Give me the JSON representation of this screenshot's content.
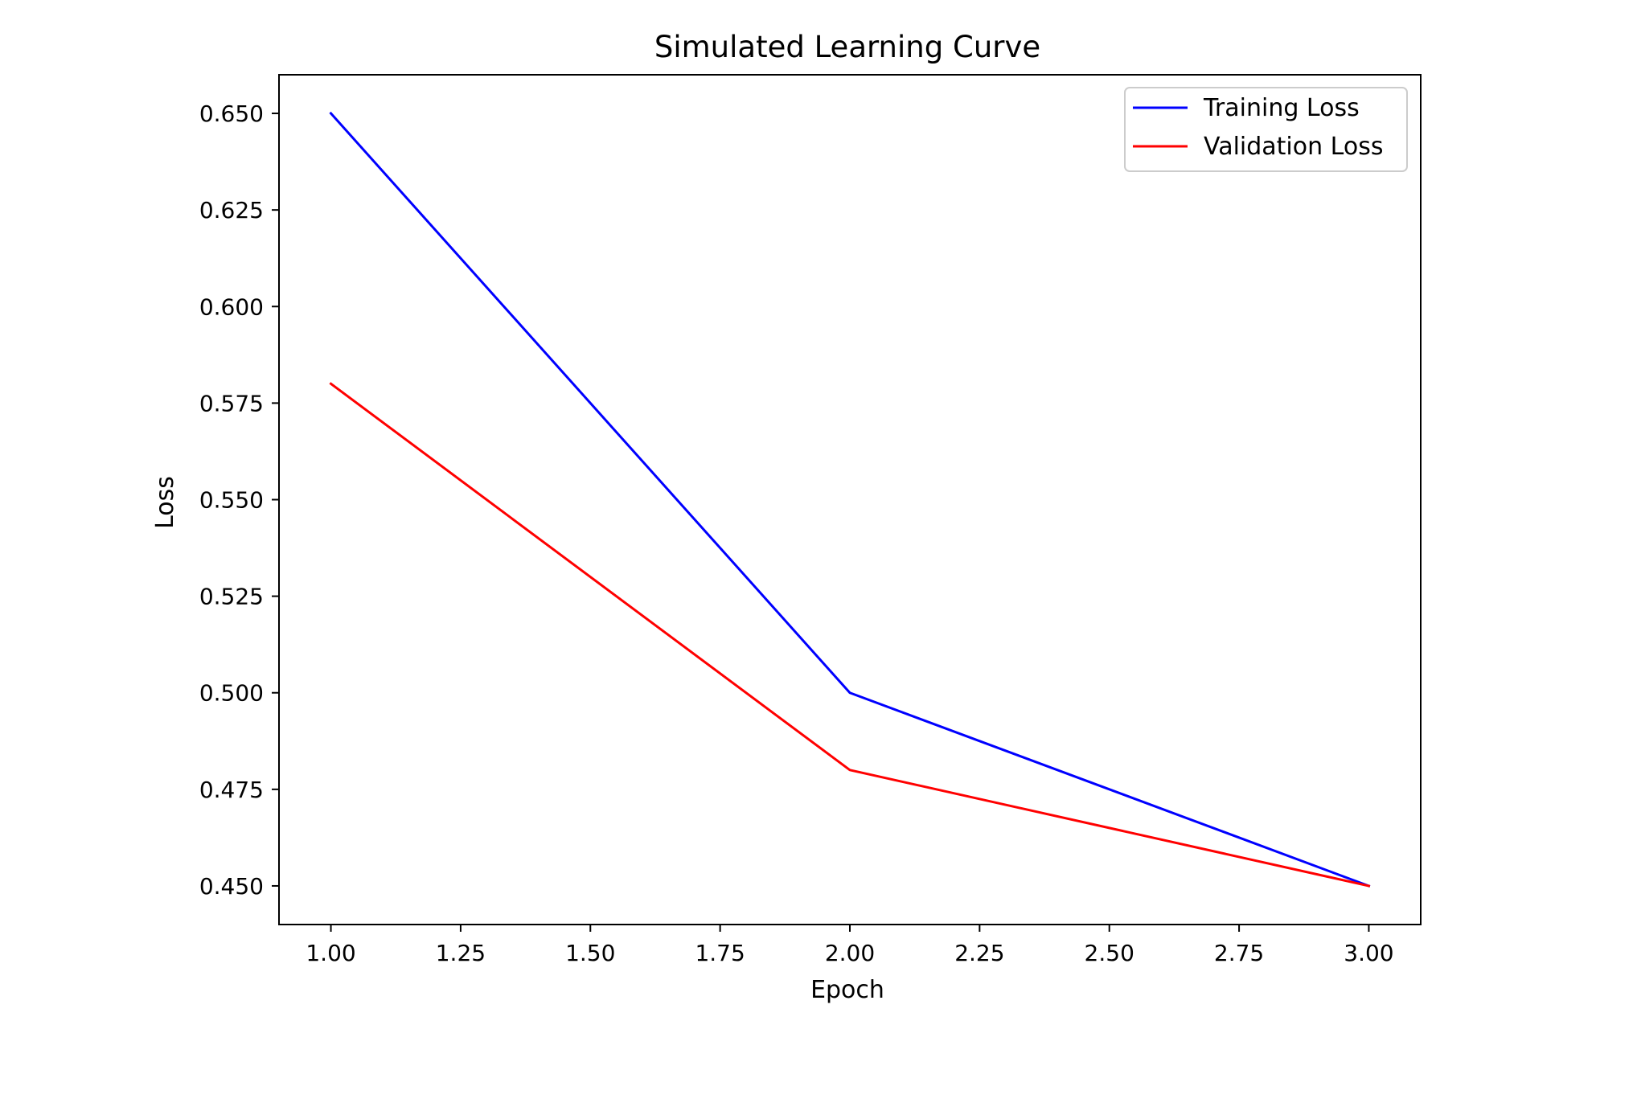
{
  "chart_data": {
    "type": "line",
    "title": "Simulated Learning Curve",
    "xlabel": "Epoch",
    "ylabel": "Loss",
    "xlim": [
      0.9,
      3.1
    ],
    "ylim": [
      0.44,
      0.66
    ],
    "xticks": [
      1.0,
      1.25,
      1.5,
      1.75,
      2.0,
      2.25,
      2.5,
      2.75,
      3.0
    ],
    "xtick_labels": [
      "1.00",
      "1.25",
      "1.50",
      "1.75",
      "2.00",
      "2.25",
      "2.50",
      "2.75",
      "3.00"
    ],
    "yticks": [
      0.45,
      0.475,
      0.5,
      0.525,
      0.55,
      0.575,
      0.6,
      0.625,
      0.65
    ],
    "ytick_labels": [
      "0.450",
      "0.475",
      "0.500",
      "0.525",
      "0.550",
      "0.575",
      "0.600",
      "0.625",
      "0.650"
    ],
    "grid": false,
    "legend_position": "top-right",
    "x": [
      1,
      2,
      3
    ],
    "series": [
      {
        "name": "Training Loss",
        "color": "#0000ff",
        "values": [
          0.65,
          0.5,
          0.45
        ]
      },
      {
        "name": "Validation Loss",
        "color": "#ff0000",
        "values": [
          0.58,
          0.48,
          0.45
        ]
      }
    ]
  }
}
